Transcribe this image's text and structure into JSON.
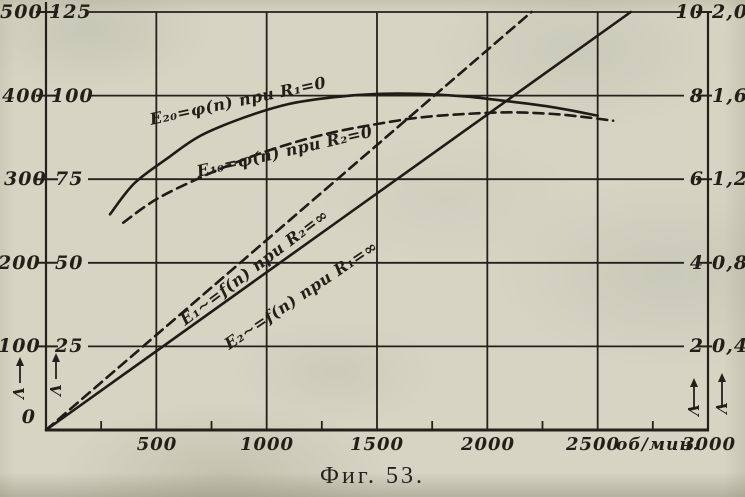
{
  "figure": {
    "caption": "Фиг. 53."
  },
  "chart_data": {
    "type": "line",
    "title": "",
    "caption": "Фиг. 53.",
    "grid": true,
    "legend": "inline-labels",
    "x_axis": {
      "label": "об/мин.",
      "min": 0,
      "max": 3000,
      "origin_label": "0",
      "tick_labels": [
        "500",
        "1000",
        "1500",
        "2000",
        "2500"
      ],
      "end_label": "3000"
    },
    "y_axes": {
      "left_outer": {
        "unit": "V",
        "min": 0,
        "max": 500,
        "ticks": [
          "500",
          "400",
          "300",
          "200",
          "100"
        ]
      },
      "left_inner": {
        "unit": "V",
        "min": 0,
        "max": 125,
        "ticks": [
          "125",
          "100",
          "75",
          "50",
          "25"
        ]
      },
      "right_inner": {
        "unit": "V",
        "min": 0,
        "max": 10,
        "ticks": [
          "10",
          "8",
          "6",
          "4",
          "2"
        ]
      },
      "right_outer": {
        "unit": "V",
        "min": 0,
        "max": 2.0,
        "ticks": [
          "2,0",
          "1,6",
          "1,2",
          "0,8",
          "0,4"
        ]
      }
    },
    "series": [
      {
        "name": "E20",
        "label": "E₂₀=φ(n) при R₁=0",
        "style": "solid",
        "axis": "left_outer",
        "points": [
          [
            290,
            258
          ],
          [
            400,
            295
          ],
          [
            550,
            325
          ],
          [
            700,
            352
          ],
          [
            900,
            374
          ],
          [
            1100,
            390
          ],
          [
            1300,
            398
          ],
          [
            1500,
            402
          ],
          [
            1700,
            402
          ],
          [
            1900,
            399
          ],
          [
            2100,
            393
          ],
          [
            2300,
            386
          ],
          [
            2500,
            376
          ]
        ]
      },
      {
        "name": "E10",
        "label": "E₁₀=φ(n) при R₂=0",
        "style": "dashed",
        "axis": "left_inner",
        "points": [
          [
            350,
            62
          ],
          [
            500,
            69
          ],
          [
            700,
            75.5
          ],
          [
            900,
            81
          ],
          [
            1100,
            85.5
          ],
          [
            1300,
            89
          ],
          [
            1500,
            91.5
          ],
          [
            1700,
            93.5
          ],
          [
            1900,
            94.5
          ],
          [
            2100,
            95
          ],
          [
            2300,
            94.5
          ],
          [
            2450,
            93.5
          ],
          [
            2570,
            92.5
          ]
        ]
      },
      {
        "name": "E1ac",
        "label": "E₁∼=f(n) при R₂=∞",
        "style": "dashed",
        "axis": "right_inner",
        "points": [
          [
            0,
            0
          ],
          [
            2200,
            10
          ]
        ]
      },
      {
        "name": "E2ac",
        "label": "E₂∼=f(n) при R₁=∞",
        "style": "solid",
        "axis": "right_inner",
        "points": [
          [
            0,
            0
          ],
          [
            2650,
            10
          ]
        ]
      }
    ]
  }
}
